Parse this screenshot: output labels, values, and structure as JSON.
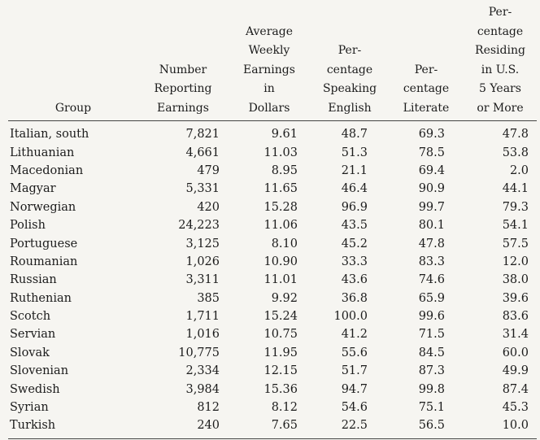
{
  "table": {
    "headers": [
      "Group",
      "Number\nReporting\nEarnings",
      "Average\nWeekly\nEarnings\nin\nDollars",
      "Per-\ncentage\nSpeaking\nEnglish",
      "Per-\ncentage\nLiterate",
      "Per-\ncentage\nResiding\nin U.S.\n5 Years\nor More"
    ],
    "rows": [
      [
        "Italian, south",
        "7,821",
        "9.61",
        "48.7",
        "69.3",
        "47.8"
      ],
      [
        "Lithuanian",
        "4,661",
        "11.03",
        "51.3",
        "78.5",
        "53.8"
      ],
      [
        "Macedonian",
        "479",
        "8.95",
        "21.1",
        "69.4",
        "2.0"
      ],
      [
        "Magyar",
        "5,331",
        "11.65",
        "46.4",
        "90.9",
        "44.1"
      ],
      [
        "Norwegian",
        "420",
        "15.28",
        "96.9",
        "99.7",
        "79.3"
      ],
      [
        "Polish",
        "24,223",
        "11.06",
        "43.5",
        "80.1",
        "54.1"
      ],
      [
        "Portuguese",
        "3,125",
        "8.10",
        "45.2",
        "47.8",
        "57.5"
      ],
      [
        "Roumanian",
        "1,026",
        "10.90",
        "33.3",
        "83.3",
        "12.0"
      ],
      [
        "Russian",
        "3,311",
        "11.01",
        "43.6",
        "74.6",
        "38.0"
      ],
      [
        "Ruthenian",
        "385",
        "9.92",
        "36.8",
        "65.9",
        "39.6"
      ],
      [
        "Scotch",
        "1,711",
        "15.24",
        "100.0",
        "99.6",
        "83.6"
      ],
      [
        "Servian",
        "1,016",
        "10.75",
        "41.2",
        "71.5",
        "31.4"
      ],
      [
        "Slovak",
        "10,775",
        "11.95",
        "55.6",
        "84.5",
        "60.0"
      ],
      [
        "Slovenian",
        "2,334",
        "12.15",
        "51.7",
        "87.3",
        "49.9"
      ],
      [
        "Swedish",
        "3,984",
        "15.36",
        "94.7",
        "99.8",
        "87.4"
      ],
      [
        "Syrian",
        "812",
        "8.12",
        "54.6",
        "75.1",
        "45.3"
      ],
      [
        "Turkish",
        "240",
        "7.65",
        "22.5",
        "56.5",
        "10.0"
      ]
    ]
  }
}
